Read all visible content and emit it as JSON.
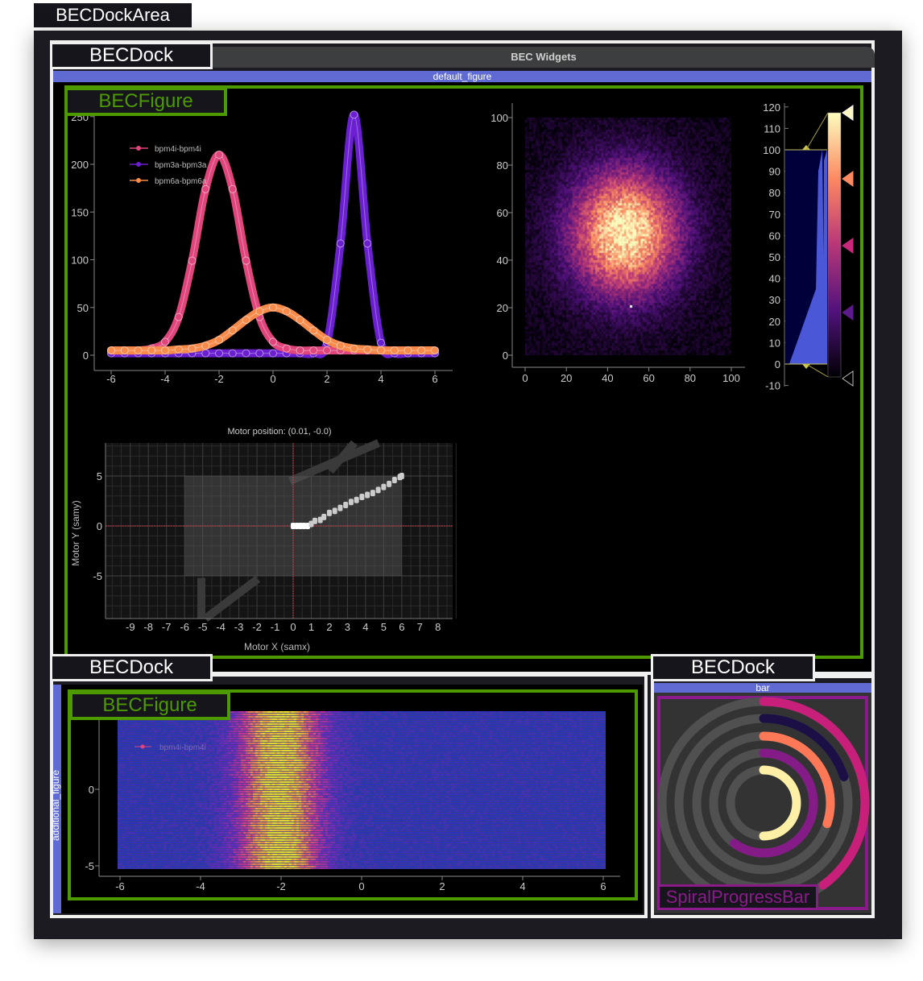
{
  "dock_area": {
    "label": "BECDockArea"
  },
  "top_dock": {
    "label": "BECDock",
    "title": "BEC Widgets",
    "figure_name": "default_figure",
    "figure_label": "BECFigure"
  },
  "bottom_left_dock": {
    "label": "BECDock",
    "figure_name": "additional_figure",
    "figure_label": "BECFigure"
  },
  "bottom_right_dock": {
    "label": "BECDock",
    "widget_name": "bar",
    "widget_label": "SpiralProgressBar"
  },
  "colors": {
    "figure_border": "#4c9a00",
    "spiral_border": "#8b1a8b",
    "dock_title_bar": "#5f6bd3"
  },
  "chart_data": [
    {
      "type": "line",
      "x": [
        -6,
        -5.5,
        -5,
        -4.5,
        -4,
        -3.5,
        -3,
        -2.5,
        -2,
        -1.5,
        -1,
        -0.5,
        0,
        0.5,
        1,
        1.5,
        2,
        2.5,
        3,
        3.5,
        4,
        4.5,
        5,
        5.5,
        6
      ],
      "series": [
        {
          "name": "bpm4i-bpm4i",
          "color": "#e0457b",
          "values": [
            5,
            5,
            5,
            7,
            14,
            40,
            99,
            174,
            210,
            174,
            99,
            40,
            14,
            7,
            5,
            5,
            5,
            5,
            5,
            5,
            5,
            5,
            5,
            5,
            5
          ]
        },
        {
          "name": "bpm3a-bpm3a",
          "color": "#6a1fd0",
          "values": [
            2,
            2,
            2,
            2,
            2,
            2,
            2,
            2,
            2,
            2,
            2,
            2,
            2,
            2,
            2,
            2,
            13,
            117,
            252,
            117,
            13,
            2,
            2,
            2,
            2
          ]
        },
        {
          "name": "bpm6a-bpm6a",
          "color": "#f88b4a",
          "values": [
            5,
            5,
            5,
            5,
            5,
            6,
            7,
            10,
            16,
            26,
            37,
            46,
            50,
            46,
            37,
            26,
            16,
            10,
            7,
            6,
            5,
            5,
            5,
            5,
            5
          ]
        }
      ],
      "xlim": [
        -6,
        6
      ],
      "ylim": [
        0,
        250
      ],
      "xticks": [
        "-6",
        "-4",
        "-2",
        "0",
        "2",
        "4",
        "6"
      ],
      "yticks": [
        "0",
        "50",
        "100",
        "150",
        "200",
        "250"
      ],
      "legend": "top-left"
    },
    {
      "type": "heatmap",
      "colormap": "magma",
      "xlim": [
        0,
        100
      ],
      "ylim": [
        0,
        100
      ],
      "xticks": [
        "0",
        "20",
        "40",
        "60",
        "80",
        "100"
      ],
      "yticks": [
        "0",
        "20",
        "40",
        "60",
        "80",
        "100"
      ],
      "peak_center": [
        48,
        52
      ],
      "levels": [
        0,
        100
      ],
      "colorbar_ticks": [
        "120",
        "110",
        "100",
        "90",
        "80",
        "70",
        "60",
        "50",
        "40",
        "30",
        "20",
        "10",
        "0",
        "-10"
      ],
      "colorbar_range": [
        -10,
        120
      ]
    },
    {
      "type": "scatter",
      "title": "Motor position: (0.01, -0.0)",
      "xlabel": "Motor X (samx)",
      "ylabel": "Motor Y (samy)",
      "xlim": [
        -10,
        9
      ],
      "ylim": [
        -9,
        8
      ],
      "xticks": [
        "-9",
        "-8",
        "-7",
        "-6",
        "-5",
        "-4",
        "-3",
        "-2",
        "-1",
        "0",
        "1",
        "2",
        "3",
        "4",
        "5",
        "6",
        "7",
        "8"
      ],
      "yticks": [
        "5",
        "0",
        "-5"
      ],
      "motor_limits": {
        "x": [
          -6,
          6
        ],
        "y": [
          -5,
          5
        ]
      },
      "current_position": [
        0.01,
        0.0
      ],
      "x": [
        0,
        0.2,
        0.4,
        0.6,
        0.8,
        1,
        1.2,
        1.5,
        1.7,
        2,
        2.3,
        2.6,
        2.9,
        3.2,
        3.5,
        3.8,
        4.1,
        4.4,
        4.7,
        5,
        5.3,
        5.6,
        5.9,
        6
      ],
      "y": [
        0,
        0,
        0,
        0,
        0,
        0.2,
        0.5,
        0.6,
        0.9,
        1.3,
        1.5,
        1.8,
        2.1,
        2.4,
        2.6,
        2.9,
        3.1,
        3.3,
        3.6,
        3.9,
        4.2,
        4.6,
        4.9,
        5
      ]
    },
    {
      "type": "scatter",
      "series": [
        {
          "name": "bpm4i-bpm4i",
          "color_by": "bpm4i",
          "colormap": "plasma"
        }
      ],
      "xlim": [
        -6,
        6
      ],
      "ylim": [
        -5.5,
        5.5
      ],
      "xticks": [
        "-6",
        "-4",
        "-2",
        "0",
        "2",
        "4",
        "6"
      ],
      "yticks": [
        "0",
        "-5"
      ],
      "peak_x": -2
    },
    {
      "type": "spiral_progress",
      "rings": [
        {
          "value": 0.4,
          "color": "#c8207a"
        },
        {
          "value": 0.2,
          "color": "#1b0f45"
        },
        {
          "value": 0.3,
          "color": "#fd7857"
        },
        {
          "value": 0.6,
          "color": "#851b87"
        },
        {
          "value": 0.5,
          "color": "#fdf0a6"
        }
      ]
    }
  ]
}
